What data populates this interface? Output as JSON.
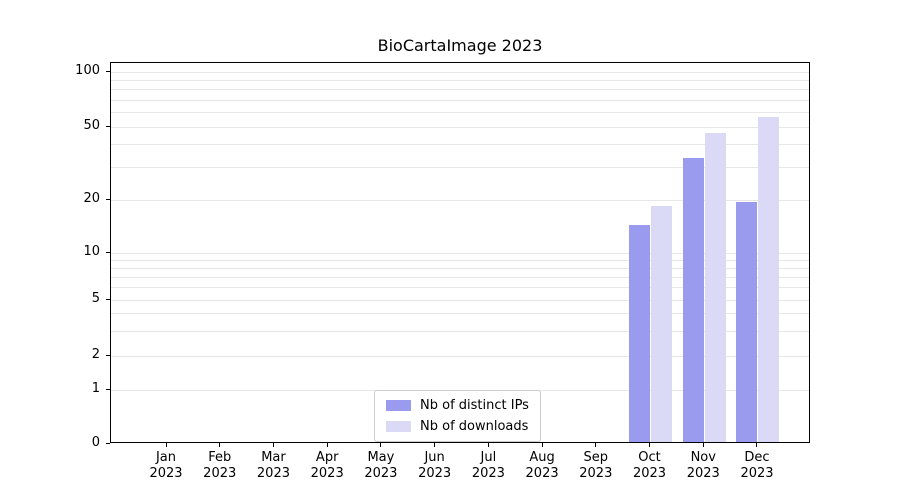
{
  "chart_data": {
    "type": "bar",
    "title": "BioCartaImage 2023",
    "categories": [
      "Jan",
      "Feb",
      "Mar",
      "Apr",
      "May",
      "Jun",
      "Jul",
      "Aug",
      "Sep",
      "Oct",
      "Nov",
      "Dec"
    ],
    "year_label": "2023",
    "series": [
      {
        "name": "Nb of distinct IPs",
        "color": "#9a9aee",
        "values": [
          0,
          0,
          0,
          0,
          0,
          0,
          0,
          0,
          0,
          14,
          33,
          19
        ]
      },
      {
        "name": "Nb of downloads",
        "color": "#dadaf7",
        "values": [
          0,
          0,
          0,
          0,
          0,
          0,
          0,
          0,
          0,
          18,
          45,
          55
        ]
      }
    ],
    "yscale": "symlog",
    "yticks": [
      0,
      1,
      2,
      5,
      10,
      20,
      50,
      100
    ],
    "minor_gridline_values": [
      1,
      2,
      3,
      4,
      5,
      6,
      7,
      8,
      9,
      10,
      20,
      30,
      40,
      50,
      60,
      70,
      80,
      90,
      100
    ],
    "ylim": [
      0,
      110
    ],
    "grid": "horizontal",
    "legend_position": "bottom-center"
  }
}
